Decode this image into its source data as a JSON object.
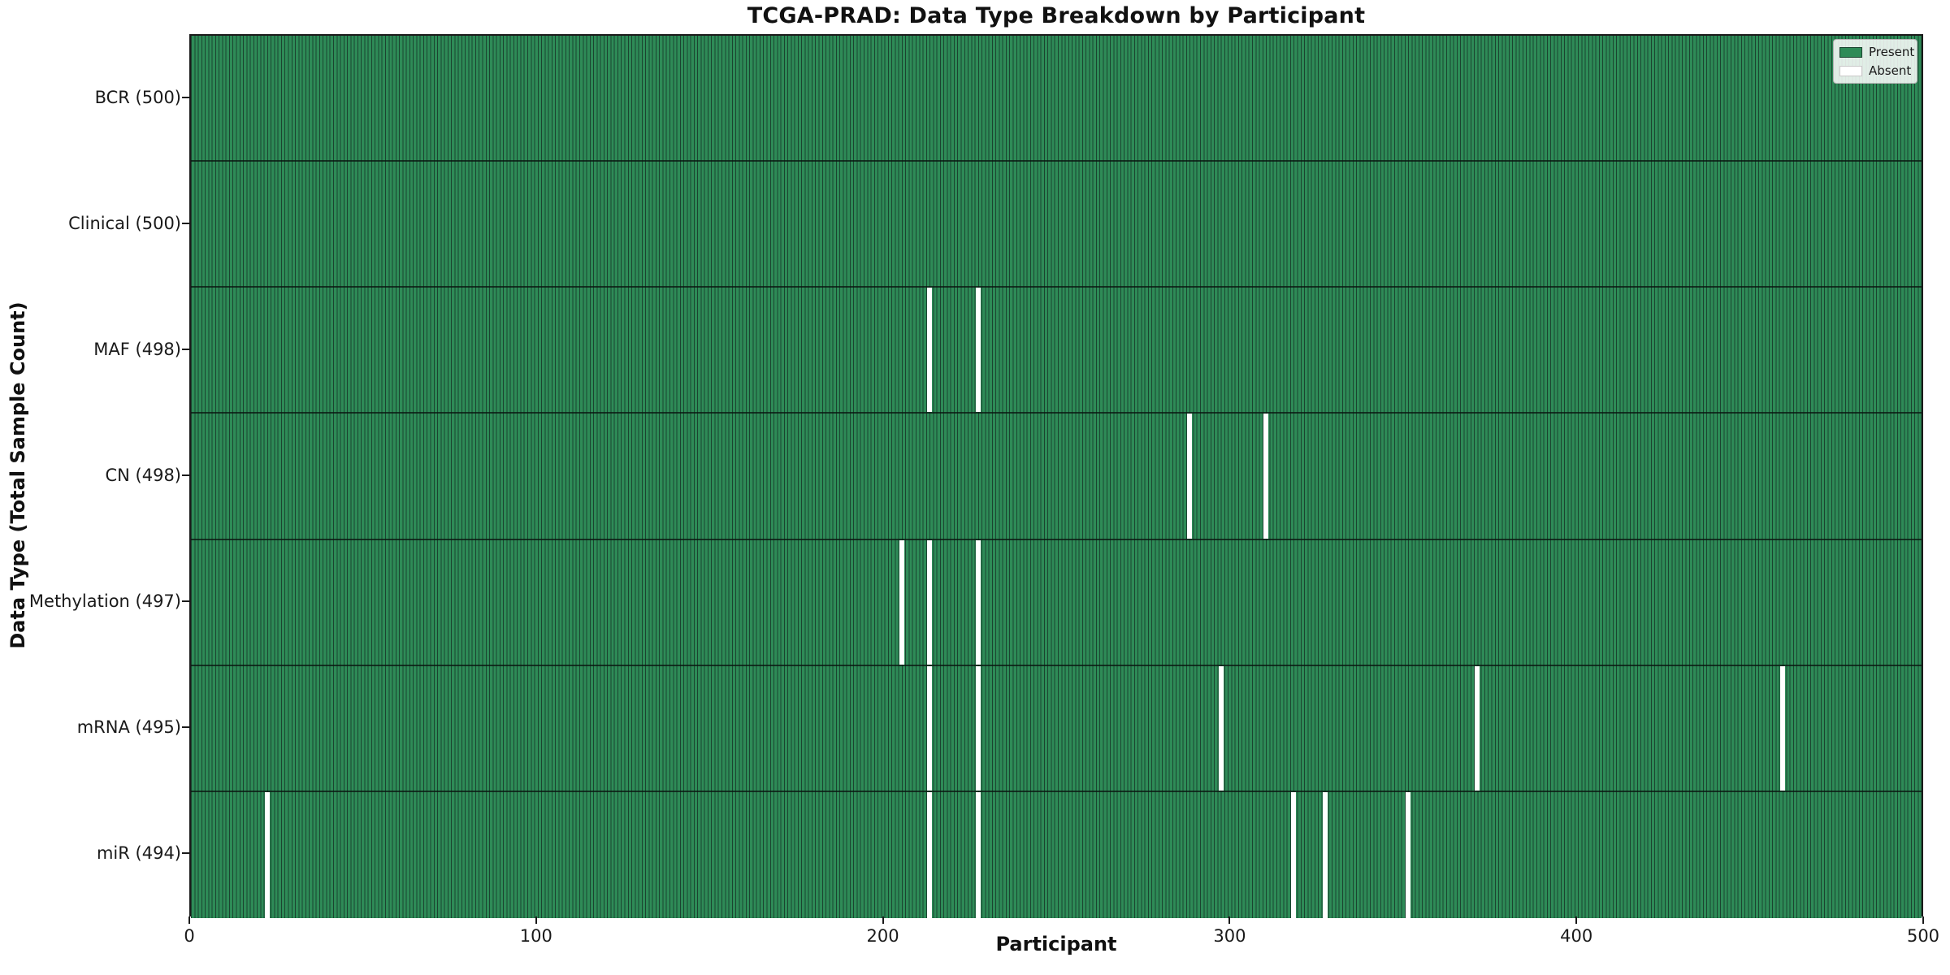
{
  "title": "TCGA-PRAD: Data Type Breakdown by Participant",
  "xlabel": "Participant",
  "ylabel": "Data Type (Total Sample Count)",
  "legend": {
    "present_label": "Present",
    "absent_label": "Absent",
    "position": "upper right"
  },
  "colors": {
    "present": "#2e8b57",
    "absent": "#ffffff",
    "cell_edge": "#1b4430",
    "axis": "#1a1a1a"
  },
  "chart_data": {
    "type": "heatmap",
    "title": "TCGA-PRAD: Data Type Breakdown by Participant",
    "xlabel": "Participant",
    "ylabel": "Data Type (Total Sample Count)",
    "x_range": [
      0,
      500
    ],
    "x_ticks": [
      0,
      100,
      200,
      300,
      400,
      500
    ],
    "grid": false,
    "legend_entries": [
      "Present",
      "Absent"
    ],
    "legend_position": "upper right",
    "total_participants": 500,
    "rows": [
      {
        "label": "BCR (500)",
        "data_type": "BCR",
        "present_count": 500,
        "absent_participants": []
      },
      {
        "label": "Clinical (500)",
        "data_type": "Clinical",
        "present_count": 500,
        "absent_participants": []
      },
      {
        "label": "MAF (498)",
        "data_type": "MAF",
        "present_count": 498,
        "absent_participants": [
          213,
          227
        ]
      },
      {
        "label": "CN (498)",
        "data_type": "CN",
        "present_count": 498,
        "absent_participants": [
          288,
          310
        ]
      },
      {
        "label": "Methylation (497)",
        "data_type": "Methylation",
        "present_count": 497,
        "absent_participants": [
          205,
          213,
          227
        ]
      },
      {
        "label": "mRNA (495)",
        "data_type": "mRNA",
        "present_count": 495,
        "absent_participants": [
          213,
          227,
          297,
          371,
          459
        ]
      },
      {
        "label": "miR (494)",
        "data_type": "miR",
        "present_count": 494,
        "absent_participants": [
          22,
          213,
          227,
          318,
          327,
          351
        ]
      }
    ]
  }
}
